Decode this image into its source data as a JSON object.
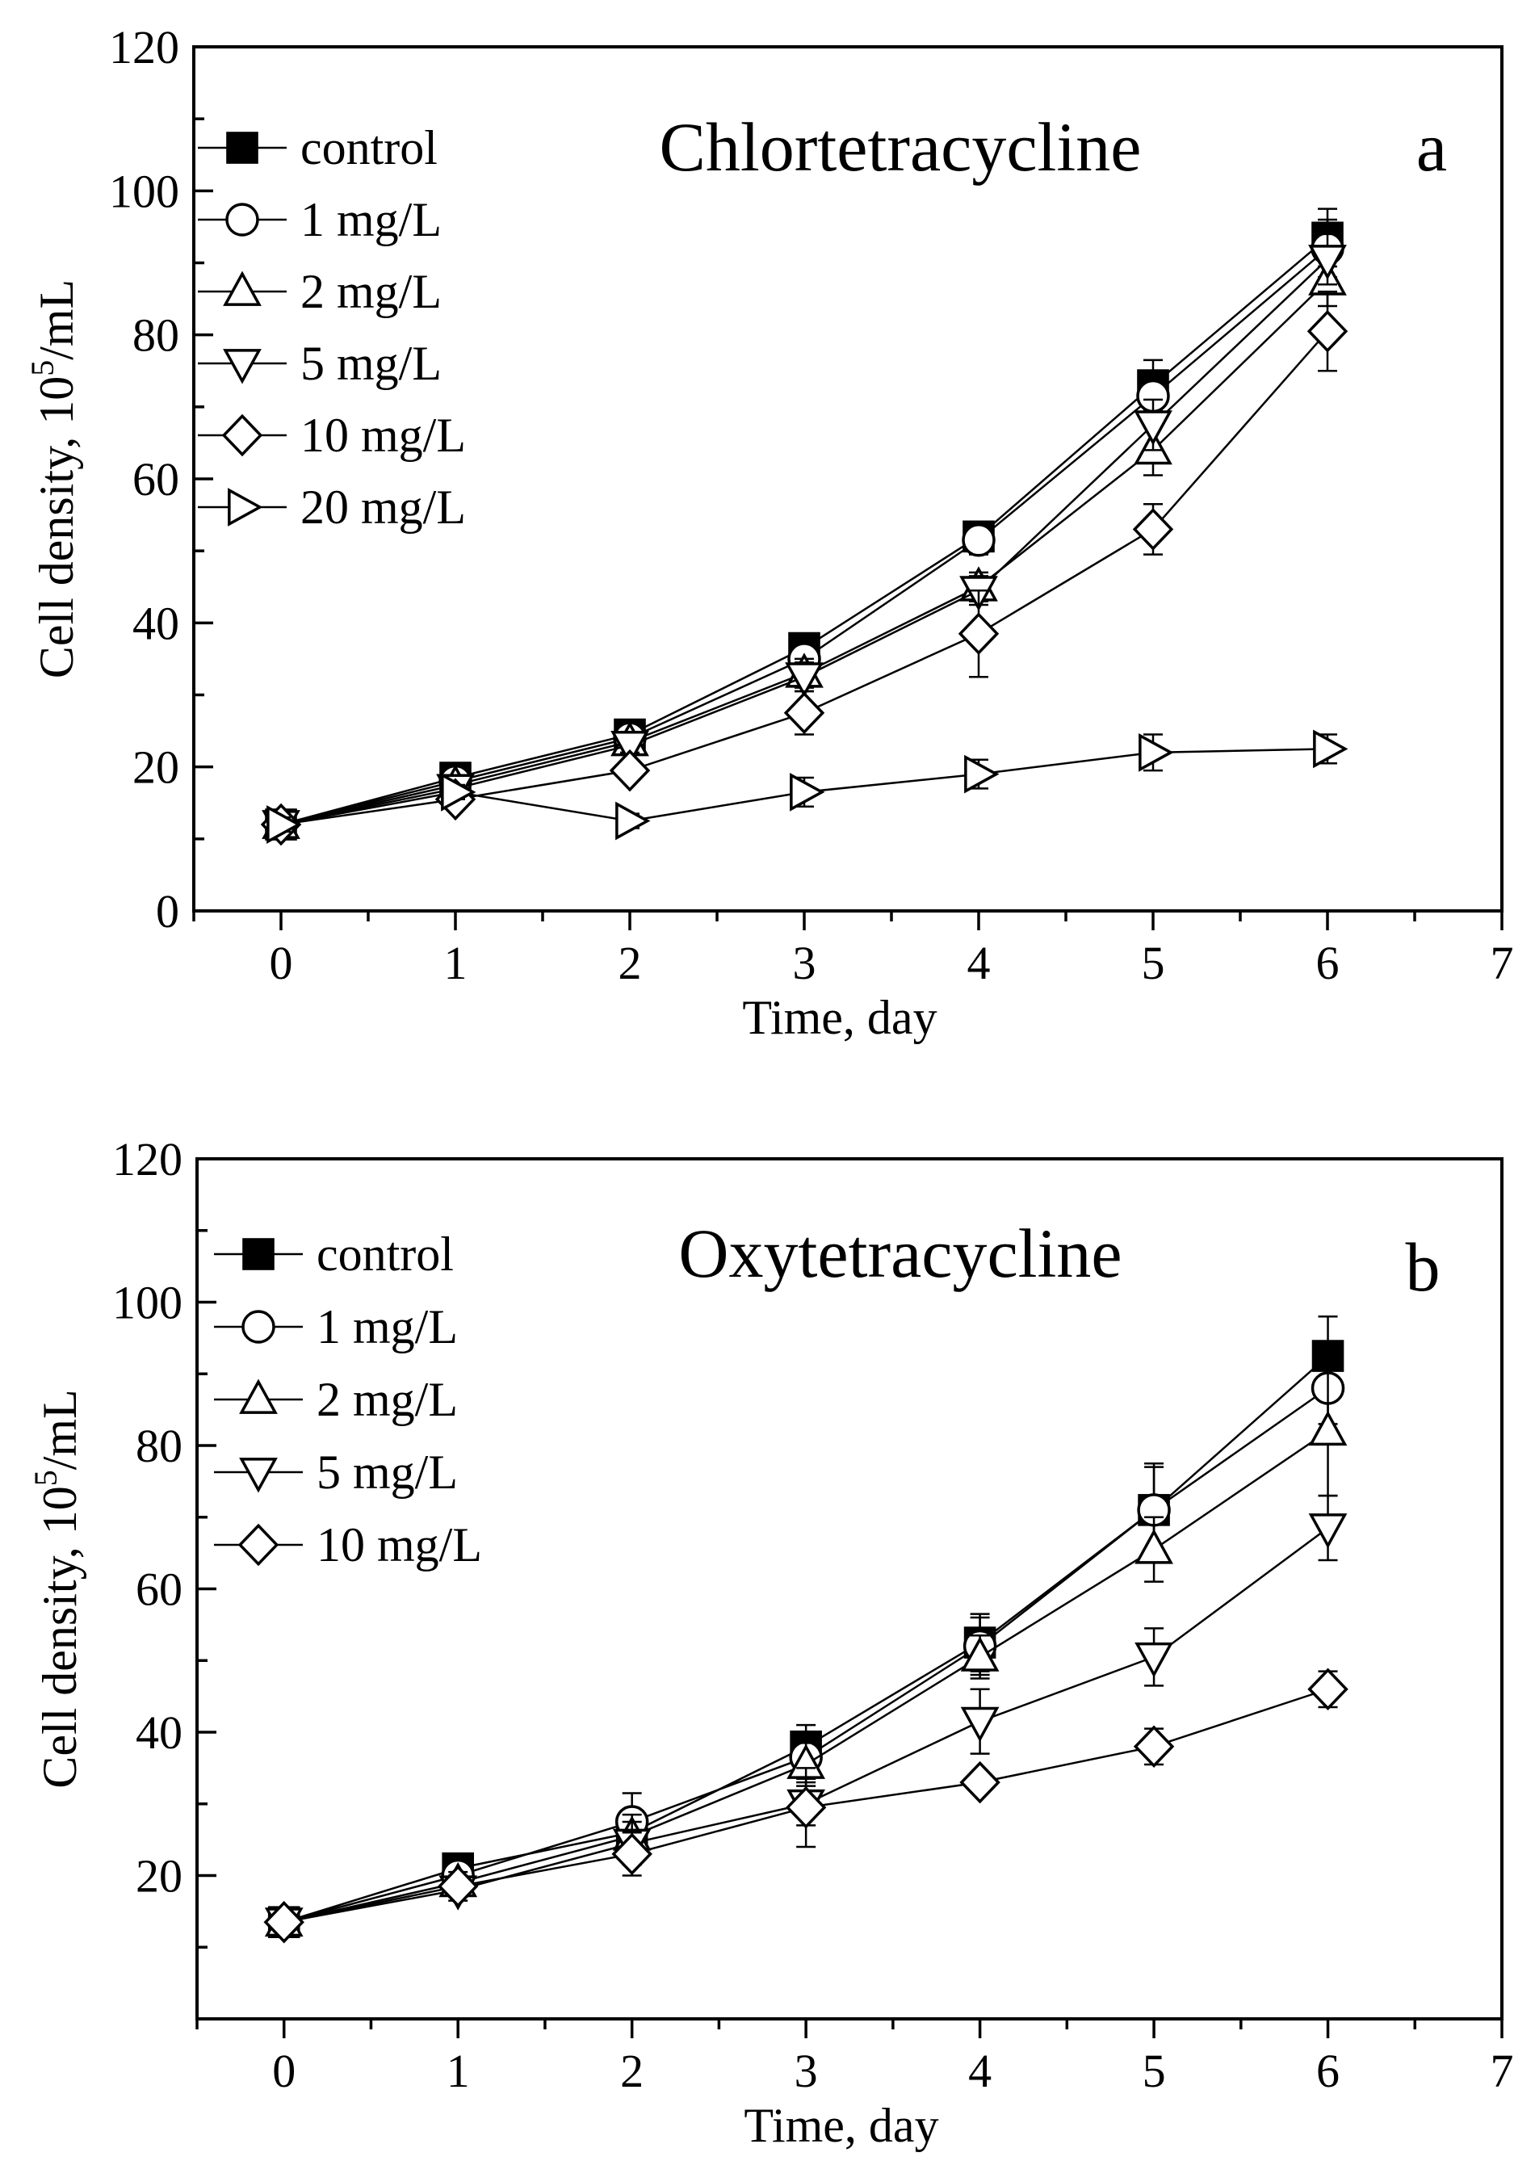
{
  "chart_data": [
    {
      "type": "line",
      "title": "Chlortetracycline",
      "panel_label": "a",
      "xlabel": "Time, day",
      "ylabel_main": "Cell density, 10",
      "ylabel_sup": "5",
      "ylabel_unit": "/mL",
      "xlim": [
        -0.5,
        7
      ],
      "ylim": [
        0,
        120
      ],
      "xticks": [
        0,
        1,
        2,
        3,
        4,
        5,
        6,
        7
      ],
      "yticks": [
        0,
        20,
        40,
        60,
        80,
        100,
        120
      ],
      "grid": false,
      "legend_position": "top-left",
      "x": [
        0,
        1,
        2,
        3,
        4,
        5,
        6
      ],
      "series": [
        {
          "name": "control",
          "marker": "square-filled",
          "values": [
            12,
            18.5,
            24.5,
            36.5,
            52,
            73,
            93.5
          ],
          "errors": [
            1,
            1,
            1,
            2,
            2,
            3.5,
            4
          ]
        },
        {
          "name": "1 mg/L",
          "marker": "circle",
          "values": [
            12,
            18,
            24,
            35,
            51.5,
            71.5,
            92
          ],
          "errors": [
            1,
            1,
            1,
            2,
            2,
            3.5,
            4
          ]
        },
        {
          "name": "2 mg/L",
          "marker": "triangle-up",
          "values": [
            12,
            17.5,
            23.5,
            33,
            45,
            64,
            87.5
          ],
          "errors": [
            1,
            1,
            1,
            2,
            2,
            3.5,
            3.5
          ]
        },
        {
          "name": "5 mg/L",
          "marker": "triangle-down",
          "values": [
            12,
            17,
            23,
            32.5,
            44.5,
            67.5,
            90.5
          ],
          "errors": [
            1,
            1,
            1,
            2,
            2,
            3.5,
            3.5
          ]
        },
        {
          "name": "10 mg/L",
          "marker": "diamond",
          "values": [
            12,
            15.5,
            19.5,
            27.5,
            38.5,
            53,
            80.5
          ],
          "errors": [
            1,
            1,
            1,
            3,
            6,
            3.5,
            5.5
          ]
        },
        {
          "name": "20 mg/L",
          "marker": "triangle-right",
          "values": [
            12,
            16.5,
            12.5,
            16.5,
            19,
            22,
            22.5
          ],
          "errors": [
            1,
            1,
            1,
            2,
            2,
            2.5,
            2
          ]
        }
      ]
    },
    {
      "type": "line",
      "title": "Oxytetracycline",
      "panel_label": "b",
      "xlabel": "Time, day",
      "ylabel_main": "Cell density, 10",
      "ylabel_sup": "5",
      "ylabel_unit": "/mL",
      "xlim": [
        -0.5,
        7
      ],
      "ylim": [
        0,
        120
      ],
      "xticks": [
        0,
        1,
        2,
        3,
        4,
        5,
        6,
        7
      ],
      "yticks": [
        20,
        40,
        60,
        80,
        100,
        120
      ],
      "grid": false,
      "legend_position": "top-left",
      "x": [
        0,
        1,
        2,
        3,
        4,
        5,
        6
      ],
      "series": [
        {
          "name": "control",
          "marker": "square-filled",
          "values": [
            13.5,
            21,
            26,
            38,
            52.5,
            71,
            92.5
          ],
          "errors": [
            1,
            1.5,
            2,
            3,
            4,
            6.5,
            5.5
          ]
        },
        {
          "name": "1 mg/L",
          "marker": "circle",
          "values": [
            13.5,
            20,
            27.5,
            36.5,
            52,
            71,
            88
          ],
          "errors": [
            1,
            1.5,
            4,
            3,
            4,
            6,
            5
          ]
        },
        {
          "name": "2 mg/L",
          "marker": "triangle-up",
          "values": [
            13.5,
            19,
            25.5,
            35.5,
            50.5,
            65.5,
            82
          ],
          "errors": [
            1,
            1.5,
            3,
            3,
            3,
            4.5,
            9
          ]
        },
        {
          "name": "5 mg/L",
          "marker": "triangle-down",
          "values": [
            13.5,
            18,
            24.5,
            30,
            41.5,
            50.5,
            68.5
          ],
          "errors": [
            1,
            1.5,
            3,
            3,
            4.5,
            4,
            4.5
          ]
        },
        {
          "name": "10 mg/L",
          "marker": "diamond",
          "values": [
            13.5,
            18.5,
            23,
            29.5,
            33,
            38,
            46
          ],
          "errors": [
            1,
            1.5,
            3,
            5.5,
            1,
            2.5,
            2.5
          ]
        }
      ]
    }
  ]
}
